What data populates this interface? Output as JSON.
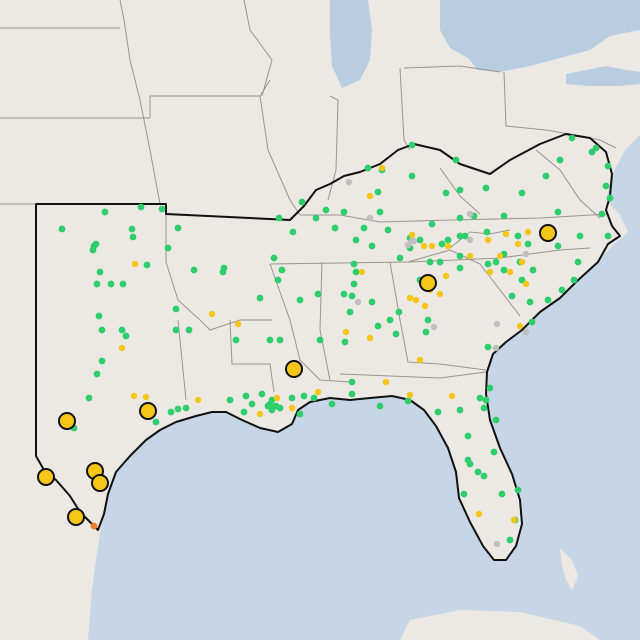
{
  "map": {
    "colors": {
      "land": "#ece8e4",
      "water": "#c6d6e6",
      "lake": "#b9cde0",
      "state_border": "#9a9590",
      "region_outline": "#111111",
      "dot_green": "#2fce6c",
      "dot_yellow": "#f5c518",
      "dot_gray": "#bfbfbf",
      "dot_orange": "#f07f2a",
      "large_marker_fill": "#f5c518",
      "large_marker_stroke": "#111111"
    },
    "legend_categories": [
      "green",
      "yellow",
      "gray",
      "orange"
    ],
    "stations": [
      {
        "category": "green",
        "count": 172
      },
      {
        "category": "yellow",
        "count": 56
      },
      {
        "category": "gray",
        "count": 14
      },
      {
        "category": "orange",
        "count": 1
      },
      {
        "category": "large-yellow",
        "count": 10
      }
    ]
  }
}
